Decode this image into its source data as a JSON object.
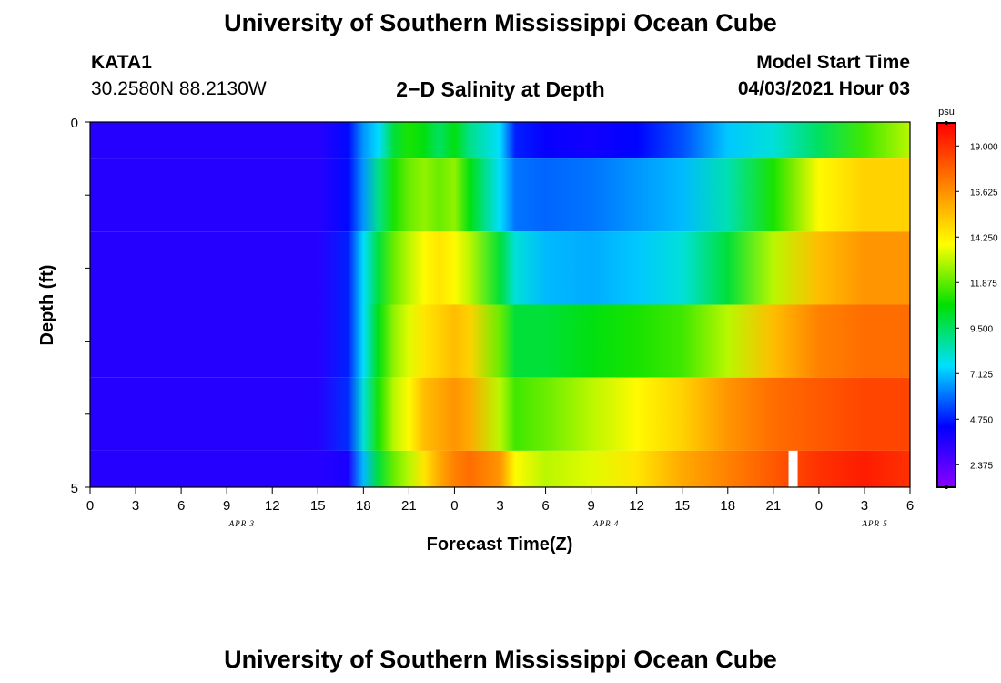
{
  "header": {
    "title": "University of Southern Mississippi Ocean Cube",
    "station_id": "KATA1",
    "station_coords": "30.2580N  88.2130W",
    "plot_title": "2−D Salinity at Depth",
    "model_start_label": "Model Start Time",
    "model_start_value": "04/03/2021 Hour 03"
  },
  "footer": {
    "title": "University of Southern Mississippi Ocean Cube"
  },
  "chart_data": {
    "type": "heatmap",
    "xlabel": "Forecast Time(Z)",
    "ylabel": "Depth (ft)",
    "ylim": [
      0,
      5
    ],
    "y_tick_labels": [
      "0",
      "5"
    ],
    "x_tick_labels": [
      "0",
      "3",
      "6",
      "9",
      "12",
      "15",
      "18",
      "21",
      "0",
      "3",
      "6",
      "9",
      "12",
      "15",
      "18",
      "21",
      "0",
      "3",
      "6"
    ],
    "date_labels": [
      "APR 3",
      "APR 4",
      "APR 5"
    ],
    "forecast_hours_from_start": [
      0,
      6,
      12,
      15,
      17,
      18,
      19,
      20,
      21,
      22,
      23,
      24,
      25,
      27,
      28,
      30,
      33,
      36,
      39,
      42,
      45,
      48,
      51,
      54
    ],
    "depth_layers": [
      "0-0.5",
      "0.5-1.5",
      "1.5-2.5",
      "2.5-3.5",
      "3.5-4.5",
      "4.5-5"
    ],
    "salinity_psu": [
      [
        3.5,
        3.5,
        3.5,
        3.5,
        4.5,
        6.5,
        7.5,
        10.0,
        11.0,
        10.5,
        9.5,
        10.5,
        9.0,
        7.5,
        4.8,
        4.2,
        4.0,
        4.4,
        5.5,
        7.2,
        8.0,
        9.5,
        11.5,
        13.0
      ],
      [
        3.5,
        3.5,
        3.5,
        3.5,
        4.5,
        6.5,
        9.0,
        11.0,
        12.0,
        12.5,
        12.0,
        12.5,
        10.5,
        7.5,
        6.0,
        5.8,
        6.0,
        6.5,
        7.0,
        8.5,
        11.0,
        14.0,
        15.0,
        15.0
      ],
      [
        3.5,
        3.5,
        3.5,
        3.5,
        4.8,
        7.5,
        10.0,
        12.0,
        13.0,
        14.0,
        14.5,
        14.0,
        13.0,
        10.0,
        8.0,
        7.0,
        6.8,
        7.2,
        8.0,
        10.0,
        13.0,
        15.5,
        16.5,
        16.5
      ],
      [
        3.5,
        3.5,
        3.5,
        3.5,
        4.8,
        7.5,
        10.5,
        12.5,
        13.5,
        14.5,
        15.0,
        15.5,
        15.0,
        12.0,
        10.0,
        10.0,
        10.5,
        11.0,
        11.5,
        13.0,
        15.5,
        17.0,
        17.5,
        17.5
      ],
      [
        3.5,
        3.5,
        3.5,
        3.5,
        5.0,
        8.0,
        11.0,
        13.0,
        14.0,
        15.5,
        16.0,
        16.5,
        16.0,
        13.0,
        11.5,
        12.0,
        13.0,
        14.0,
        15.0,
        16.5,
        17.5,
        18.0,
        18.5,
        18.5
      ],
      [
        3.5,
        3.5,
        3.5,
        3.5,
        3.8,
        7.0,
        10.0,
        12.0,
        13.0,
        14.5,
        16.0,
        17.0,
        17.5,
        16.5,
        14.0,
        13.0,
        13.5,
        14.5,
        16.0,
        17.0,
        18.0,
        19.0,
        19.5,
        19.0
      ]
    ],
    "colorbar": {
      "unit": "psu",
      "min": 1.2,
      "max": 20.2,
      "tick_labels": [
        "19.000",
        "16.625",
        "14.250",
        "11.875",
        "9.500",
        "7.125",
        "4.750",
        "2.375"
      ],
      "tick_values": [
        19.0,
        16.625,
        14.25,
        11.875,
        9.5,
        7.125,
        4.75,
        2.375
      ],
      "colors": [
        "#8a00ff",
        "#0000ff",
        "#00e0ff",
        "#00e000",
        "#ffff00",
        "#ff8000",
        "#ff0000"
      ]
    },
    "missing_value_bar": {
      "x_hours": 46,
      "width_hours": 0.6,
      "color": "#ffffff"
    }
  }
}
